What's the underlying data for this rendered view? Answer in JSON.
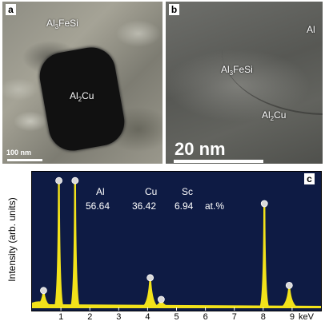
{
  "panel_a": {
    "letter": "a",
    "phase_top": {
      "base": "Al",
      "sub": "3",
      "rest": "FeSi"
    },
    "phase_grain": {
      "base": "Al",
      "sub": "2",
      "rest": "Cu"
    },
    "scale_label": "100 nm"
  },
  "panel_b": {
    "letter": "b",
    "phase_al": "Al",
    "phase_mid": {
      "base": "Al",
      "sub": "3",
      "rest": "FeSi"
    },
    "phase_low": {
      "base": "Al",
      "sub": "2",
      "rest": "Cu"
    },
    "scale_label": "20 nm"
  },
  "panel_c": {
    "letter": "c",
    "colors": {
      "background": "#0e1b44",
      "peak": "#f2e21a",
      "marker": "#d9d9d9"
    },
    "composition": {
      "elements": [
        "Al",
        "Cu",
        "Sc"
      ],
      "values": [
        "56.64",
        "36.42",
        "6.94"
      ],
      "unit": "at.%"
    }
  },
  "chart_data": {
    "type": "line",
    "title": "",
    "xlabel": "keV",
    "ylabel": "Intensity (arb. units)",
    "xlim": [
      0,
      10
    ],
    "ylim": [
      0,
      1
    ],
    "x_ticks": [
      1,
      2,
      3,
      4,
      5,
      6,
      7,
      8,
      9
    ],
    "peaks": [
      {
        "x": 0.4,
        "y": 0.12
      },
      {
        "x": 0.93,
        "y": 0.98
      },
      {
        "x": 1.49,
        "y": 0.98
      },
      {
        "x": 4.09,
        "y": 0.22
      },
      {
        "x": 4.47,
        "y": 0.05
      },
      {
        "x": 8.04,
        "y": 0.8
      },
      {
        "x": 8.9,
        "y": 0.16
      }
    ]
  }
}
